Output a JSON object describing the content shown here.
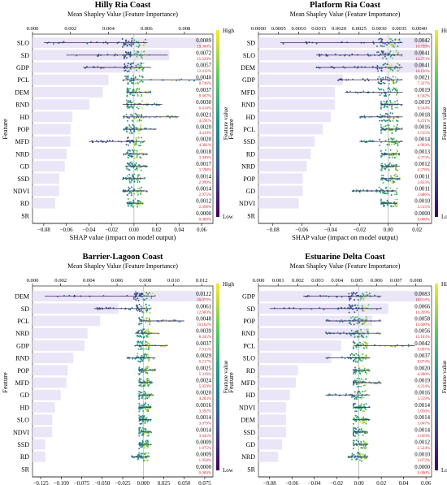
{
  "colors": {
    "bar": "#e6e0f6",
    "high": "#f5e61e",
    "mid": "#21918c",
    "low": "#440154",
    "pct": "#d62728"
  },
  "chart_data": [
    {
      "type": "scatter",
      "title": "Hilly Ria Coast",
      "top_axis_label": "Mean Shapley Value (Feature Importance)",
      "top_ticks": [
        "0.000",
        "0.002",
        "0.004",
        "0.006",
        "0.008"
      ],
      "top_range": [
        0,
        0.0095
      ],
      "xlabel": "SHAP value (impact on model output)",
      "ylabel": "Feature",
      "x_ticks": [
        "−0.08",
        "−0.06",
        "−0.04",
        "−0.02",
        "0.00",
        "0.02",
        "0.04",
        "0.06"
      ],
      "x_range": [
        -0.09,
        0.07
      ],
      "colorbar": {
        "label": "Feature value",
        "high": "High",
        "low": "Low"
      },
      "features": [
        {
          "name": "SLO",
          "importance": 0.0089,
          "value": "0.0089",
          "pct": "19.368%",
          "min": -0.08,
          "max": 0.012
        },
        {
          "name": "SD",
          "importance": 0.0072,
          "value": "0.0072",
          "pct": "15.620%",
          "min": -0.06,
          "max": 0.03
        },
        {
          "name": "GDP",
          "importance": 0.0057,
          "value": "0.0057",
          "pct": "12.412%",
          "min": -0.045,
          "max": 0.015
        },
        {
          "name": "PCL",
          "importance": 0.004,
          "value": "0.0040",
          "pct": "8.746%",
          "min": -0.01,
          "max": 0.06
        },
        {
          "name": "DEM",
          "importance": 0.0037,
          "value": "0.0037",
          "pct": "8.067%",
          "min": -0.006,
          "max": 0.015
        },
        {
          "name": "RND",
          "importance": 0.003,
          "value": "0.0030",
          "pct": "6.414%",
          "min": -0.01,
          "max": 0.025
        },
        {
          "name": "HD",
          "importance": 0.0021,
          "value": "0.0021",
          "pct": "4.591%",
          "min": -0.01,
          "max": 0.04
        },
        {
          "name": "POP",
          "importance": 0.002,
          "value": "0.0020",
          "pct": "4.419%",
          "min": -0.01,
          "max": 0.02
        },
        {
          "name": "MFD",
          "importance": 0.002,
          "value": "0.0020",
          "pct": "4.381%",
          "min": -0.04,
          "max": 0.01
        },
        {
          "name": "NRD",
          "importance": 0.0018,
          "value": "0.0018",
          "pct": "3.949%",
          "min": -0.01,
          "max": 0.012
        },
        {
          "name": "GD",
          "importance": 0.0017,
          "value": "0.0017",
          "pct": "3.598%",
          "min": -0.008,
          "max": 0.012
        },
        {
          "name": "SSD",
          "importance": 0.0014,
          "value": "0.0014",
          "pct": "2.999%",
          "min": -0.01,
          "max": 0.01
        },
        {
          "name": "NDVI",
          "importance": 0.0014,
          "value": "0.0014",
          "pct": "2.975%",
          "min": -0.01,
          "max": 0.012
        },
        {
          "name": "RD",
          "importance": 0.0012,
          "value": "0.0012",
          "pct": "2.498%",
          "min": -0.006,
          "max": 0.008
        },
        {
          "name": "SR",
          "importance": 0.0,
          "value": "0.0000",
          "pct": "0.000%",
          "min": 0,
          "max": 0
        }
      ]
    },
    {
      "type": "scatter",
      "title": "Platform Ria Coast",
      "top_axis_label": "Mean Shapley Value (Feature Importance)",
      "top_ticks": [
        "0.0000",
        "0.0005",
        "0.0010",
        "0.0015",
        "0.0020",
        "0.0025",
        "0.0030",
        "0.0035",
        "0.0040"
      ],
      "top_range": [
        0,
        0.0043
      ],
      "xlabel": "SHAP value (impact on model output)",
      "ylabel": "Feature",
      "x_ticks": [
        "−0.08",
        "−0.06",
        "−0.04",
        "−0.02",
        "0.00",
        "0.02"
      ],
      "x_range": [
        -0.09,
        0.03
      ],
      "colorbar": {
        "label": "Feature value",
        "high": "High",
        "low": "Low"
      },
      "features": [
        {
          "name": "SD",
          "importance": 0.0042,
          "value": "0.0042",
          "pct": "14.799%",
          "min": -0.075,
          "max": 0.01
        },
        {
          "name": "SLO",
          "importance": 0.0041,
          "value": "0.0041",
          "pct": "14.273%",
          "min": -0.05,
          "max": 0.01
        },
        {
          "name": "DEM",
          "importance": 0.0041,
          "value": "0.0041",
          "pct": "14.126%",
          "min": -0.05,
          "max": 0.01
        },
        {
          "name": "GDP",
          "importance": 0.0021,
          "value": "0.0021",
          "pct": "7.327%",
          "min": -0.035,
          "max": 0.01
        },
        {
          "name": "MFD",
          "importance": 0.0019,
          "value": "0.0019",
          "pct": "6.562%",
          "min": -0.03,
          "max": 0.01
        },
        {
          "name": "RND",
          "importance": 0.0019,
          "value": "0.0019",
          "pct": "6.544%",
          "min": -0.005,
          "max": 0.01
        },
        {
          "name": "HD",
          "importance": 0.0018,
          "value": "0.0018",
          "pct": "6.231%",
          "min": -0.02,
          "max": 0.01
        },
        {
          "name": "PCL",
          "importance": 0.0016,
          "value": "0.0016",
          "pct": "5.535%",
          "min": -0.005,
          "max": 0.01
        },
        {
          "name": "SSD",
          "importance": 0.0014,
          "value": "0.0014",
          "pct": "4.903%",
          "min": -0.02,
          "max": 0.01
        },
        {
          "name": "RD",
          "importance": 0.0013,
          "value": "0.0013",
          "pct": "4.373%",
          "min": -0.005,
          "max": 0.008
        },
        {
          "name": "NRD",
          "importance": 0.0012,
          "value": "0.0012",
          "pct": "4.276%",
          "min": -0.005,
          "max": 0.008
        },
        {
          "name": "POP",
          "importance": 0.0011,
          "value": "0.0011",
          "pct": "3.853%",
          "min": -0.005,
          "max": 0.008
        },
        {
          "name": "GD",
          "importance": 0.0011,
          "value": "0.0011",
          "pct": "3.686%",
          "min": -0.025,
          "max": 0.006
        },
        {
          "name": "NDVI",
          "importance": 0.001,
          "value": "0.0010",
          "pct": "3.515%",
          "min": -0.005,
          "max": 0.006
        },
        {
          "name": "SR",
          "importance": 0.0,
          "value": "0.0000",
          "pct": "0.000%",
          "min": 0,
          "max": 0
        }
      ]
    },
    {
      "type": "scatter",
      "title": "Barrier-Lagoon Coast",
      "top_axis_label": "Mean Shapley Value (Feature Importance)",
      "top_ticks": [
        "0.000",
        "0.002",
        "0.004",
        "0.006",
        "0.008",
        "0.010",
        "0.012"
      ],
      "top_range": [
        0,
        0.0128
      ],
      "xlabel": "SHAP value (impact on model output)",
      "ylabel": "Feature",
      "x_ticks": [
        "−0.125",
        "−0.100",
        "−0.075",
        "−0.050",
        "−0.025",
        "0.000",
        "0.025",
        "0.050",
        "0.075"
      ],
      "x_range": [
        -0.135,
        0.085
      ],
      "colorbar": {
        "label": "Feature value",
        "high": "High",
        "low": "Low"
      },
      "features": [
        {
          "name": "DEM",
          "importance": 0.0122,
          "value": "0.0122",
          "pct": "26.078%",
          "min": -0.12,
          "max": 0.015
        },
        {
          "name": "SD",
          "importance": 0.0061,
          "value": "0.0061",
          "pct": "12.983%",
          "min": -0.06,
          "max": 0.01
        },
        {
          "name": "PCL",
          "importance": 0.0048,
          "value": "0.0048",
          "pct": "10.162%",
          "min": -0.005,
          "max": 0.05
        },
        {
          "name": "NRD",
          "importance": 0.0039,
          "value": "0.0039",
          "pct": "8.345%",
          "min": -0.01,
          "max": 0.02
        },
        {
          "name": "GDP",
          "importance": 0.0037,
          "value": "0.0037",
          "pct": "7.915%",
          "min": -0.01,
          "max": 0.03
        },
        {
          "name": "RND",
          "importance": 0.0029,
          "value": "0.0029",
          "pct": "6.217%",
          "min": -0.02,
          "max": 0.015
        },
        {
          "name": "POP",
          "importance": 0.0025,
          "value": "0.0025",
          "pct": "5.319%",
          "min": -0.005,
          "max": 0.015
        },
        {
          "name": "MFD",
          "importance": 0.0024,
          "value": "0.0024",
          "pct": "5.059%",
          "min": -0.005,
          "max": 0.012
        },
        {
          "name": "GD",
          "importance": 0.002,
          "value": "0.0020",
          "pct": "4.283%",
          "min": -0.005,
          "max": 0.012
        },
        {
          "name": "HD",
          "importance": 0.0016,
          "value": "0.0016",
          "pct": "3.392%",
          "min": -0.005,
          "max": 0.01
        },
        {
          "name": "SLO",
          "importance": 0.0014,
          "value": "0.0014",
          "pct": "3.079%",
          "min": -0.005,
          "max": 0.01
        },
        {
          "name": "NDVI",
          "importance": 0.0014,
          "value": "0.0014",
          "pct": "3.045%",
          "min": -0.005,
          "max": 0.01
        },
        {
          "name": "SSD",
          "importance": 0.0009,
          "value": "0.0009",
          "pct": "1.975%",
          "min": -0.005,
          "max": 0.01
        },
        {
          "name": "RD",
          "importance": 0.0009,
          "value": "0.0009",
          "pct": "1.958%",
          "min": -0.015,
          "max": 0.008
        },
        {
          "name": "SR",
          "importance": 0.0,
          "value": "0.0000",
          "pct": "0.000%",
          "min": 0,
          "max": 0
        }
      ]
    },
    {
      "type": "scatter",
      "title": "Estuarine Delta Coast",
      "top_axis_label": "Mean Shapley Value (Feature Importance)",
      "top_ticks": [
        "0.000",
        "0.001",
        "0.002",
        "0.003",
        "0.004",
        "0.005",
        "0.006",
        "0.007",
        "0.008"
      ],
      "top_range": [
        0,
        0.0088
      ],
      "xlabel": "SHAP value (impact on model output)",
      "ylabel": "Feature",
      "x_ticks": [
        "−0.08",
        "−0.06",
        "−0.04",
        "−0.02",
        "0.00",
        "0.02",
        "0.04",
        "0.06"
      ],
      "x_range": [
        -0.09,
        0.065
      ],
      "colorbar": {
        "label": "Feature value",
        "high": "High",
        "low": "Low"
      },
      "features": [
        {
          "name": "GDP",
          "importance": 0.0083,
          "value": "0.0083",
          "pct": "18.018%",
          "min": -0.05,
          "max": 0.02
        },
        {
          "name": "SD",
          "importance": 0.0066,
          "value": "0.0066",
          "pct": "14.269%",
          "min": -0.08,
          "max": 0.02
        },
        {
          "name": "POP",
          "importance": 0.0058,
          "value": "0.0058",
          "pct": "12.600%",
          "min": -0.03,
          "max": 0.02
        },
        {
          "name": "RND",
          "importance": 0.0056,
          "value": "0.0056",
          "pct": "12.183%",
          "min": -0.03,
          "max": 0.02
        },
        {
          "name": "PCL",
          "importance": 0.0042,
          "value": "0.0042",
          "pct": "9.097%",
          "min": -0.005,
          "max": 0.05
        },
        {
          "name": "SLO",
          "importance": 0.0037,
          "value": "0.0037",
          "pct": "8.074%",
          "min": -0.03,
          "max": 0.01
        },
        {
          "name": "RD",
          "importance": 0.002,
          "value": "0.0020",
          "pct": "4.280%",
          "min": -0.005,
          "max": 0.01
        },
        {
          "name": "MFD",
          "importance": 0.0019,
          "value": "0.0019",
          "pct": "4.224%",
          "min": -0.005,
          "max": 0.02
        },
        {
          "name": "HD",
          "importance": 0.0016,
          "value": "0.0016",
          "pct": "3.559%",
          "min": -0.03,
          "max": 0.01
        },
        {
          "name": "NDVI",
          "importance": 0.0014,
          "value": "0.0014",
          "pct": "3.056%",
          "min": -0.005,
          "max": 0.01
        },
        {
          "name": "DEM",
          "importance": 0.0014,
          "value": "0.0014",
          "pct": "3.047%",
          "min": -0.005,
          "max": 0.01
        },
        {
          "name": "SSD",
          "importance": 0.0014,
          "value": "0.0014",
          "pct": "3.029%",
          "min": -0.005,
          "max": 0.008
        },
        {
          "name": "GD",
          "importance": 0.0012,
          "value": "0.0012",
          "pct": "2.524%",
          "min": -0.005,
          "max": 0.008
        },
        {
          "name": "NRD",
          "importance": 0.001,
          "value": "0.0010",
          "pct": "2.072%",
          "min": -0.01,
          "max": 0.008
        },
        {
          "name": "SR",
          "importance": 0.0,
          "value": "0.0000",
          "pct": "0.000%",
          "min": 0,
          "max": 0
        }
      ]
    }
  ]
}
